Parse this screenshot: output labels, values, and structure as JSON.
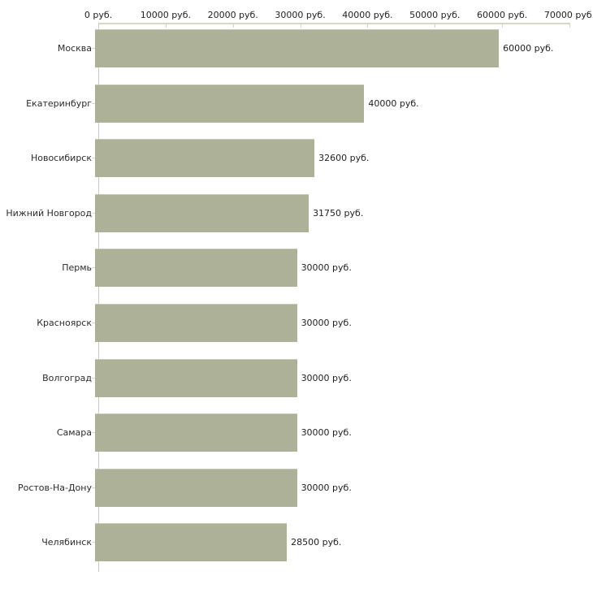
{
  "chart_data": {
    "type": "bar",
    "orientation": "horizontal",
    "title": "",
    "xlabel": "",
    "ylabel": "",
    "xlim": [
      0,
      70000
    ],
    "grid": false,
    "legend": null,
    "categories": [
      "Москва",
      "Екатеринбург",
      "Новосибирск",
      "Нижний Новгород",
      "Пермь",
      "Красноярск",
      "Волгоград",
      "Самара",
      "Ростов-На-Дону",
      "Челябинск"
    ],
    "values": [
      60000,
      40000,
      32600,
      31750,
      30000,
      30000,
      30000,
      30000,
      30000,
      28500
    ],
    "value_labels": [
      "60000 руб.",
      "40000 руб.",
      "32600 руб.",
      "31750 руб.",
      "30000 руб.",
      "30000 руб.",
      "30000 руб.",
      "30000 руб.",
      "30000 руб.",
      "28500 руб."
    ],
    "x_tick_labels": [
      "0 руб.",
      "10000 руб.",
      "20000 руб.",
      "30000 руб.",
      "40000 руб.",
      "50000 руб.",
      "60000 руб.",
      "70000 руб."
    ],
    "colors": {
      "bar_fill": "#acb197",
      "bar_top_highlight": "#c5c9b2",
      "axis_line": "#d7d8c1",
      "y_axis_line": "#c9c9c9",
      "text": "#222222"
    }
  }
}
